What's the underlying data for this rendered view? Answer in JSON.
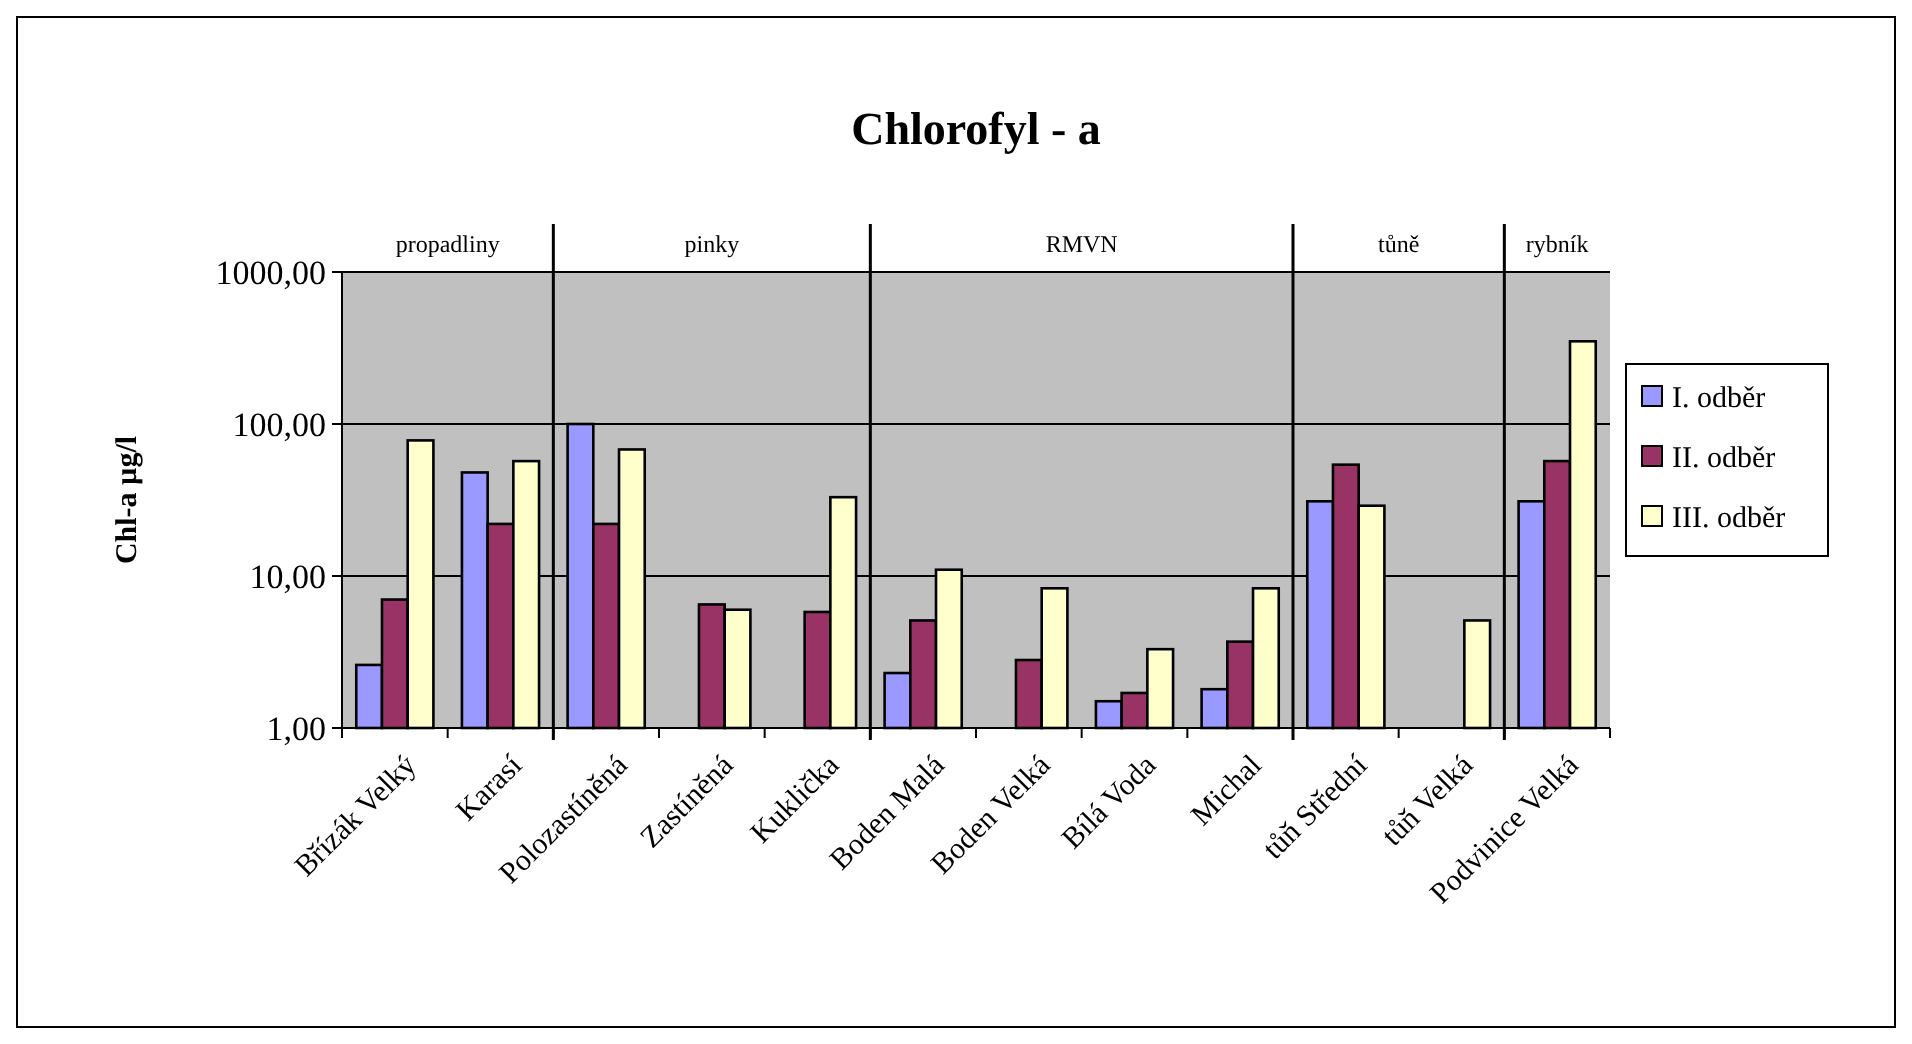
{
  "chart_data": {
    "type": "bar",
    "title": "Chlorofyl - a",
    "ylabel": "Chl-a µg/l",
    "categories": [
      "Břízák Velký",
      "Karasí",
      "Polozastíněná",
      "Zastíněná",
      "Kuklička",
      "Boden Malá",
      "Boden Velká",
      "Bílá Voda",
      "Michal",
      "tůň Střední",
      "tůň Velká",
      "Podvinice Velká"
    ],
    "series": [
      {
        "name": "I. odběr",
        "color": "#9999ff",
        "values": [
          2.6,
          48,
          100,
          null,
          null,
          2.3,
          null,
          1.5,
          1.8,
          31,
          null,
          31
        ]
      },
      {
        "name": "II. odběr",
        "color": "#993366",
        "values": [
          7,
          22,
          22,
          6.5,
          5.8,
          5.1,
          2.8,
          1.7,
          3.7,
          54,
          null,
          57
        ]
      },
      {
        "name": "III. odběr",
        "color": "#ffffcc",
        "values": [
          78,
          57,
          68,
          6,
          33,
          11,
          8.3,
          3.3,
          8.3,
          29,
          5.1,
          350
        ]
      }
    ],
    "log": true,
    "ylim": [
      1,
      1000
    ],
    "yticks": [
      {
        "value": 1,
        "label": "1,00"
      },
      {
        "value": 10,
        "label": "10,00"
      },
      {
        "value": 100,
        "label": "100,00"
      },
      {
        "value": 1000,
        "label": "1000,00"
      }
    ],
    "grid": "y",
    "legend": "right",
    "annotations": [
      "propadliny",
      "pinky",
      "RMVN",
      "tůně",
      "rybník"
    ]
  }
}
